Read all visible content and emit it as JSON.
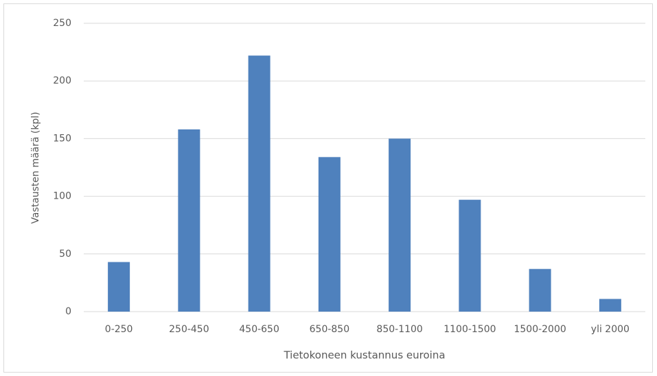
{
  "chart_data": {
    "type": "bar",
    "categories": [
      "0-250",
      "250-450",
      "450-650",
      "650-850",
      "850-1100",
      "1100-1500",
      "1500-2000",
      "yli 2000"
    ],
    "values": [
      43,
      158,
      222,
      134,
      150,
      97,
      37,
      11
    ],
    "color": "#4f81bd",
    "x_label": "Tietokoneen  kustannus euroina",
    "y_label": "Vastausten määrä (kpl)",
    "ylim": [
      0,
      250
    ],
    "yticks": [
      0,
      50,
      100,
      150,
      200,
      250
    ],
    "grid": true
  }
}
